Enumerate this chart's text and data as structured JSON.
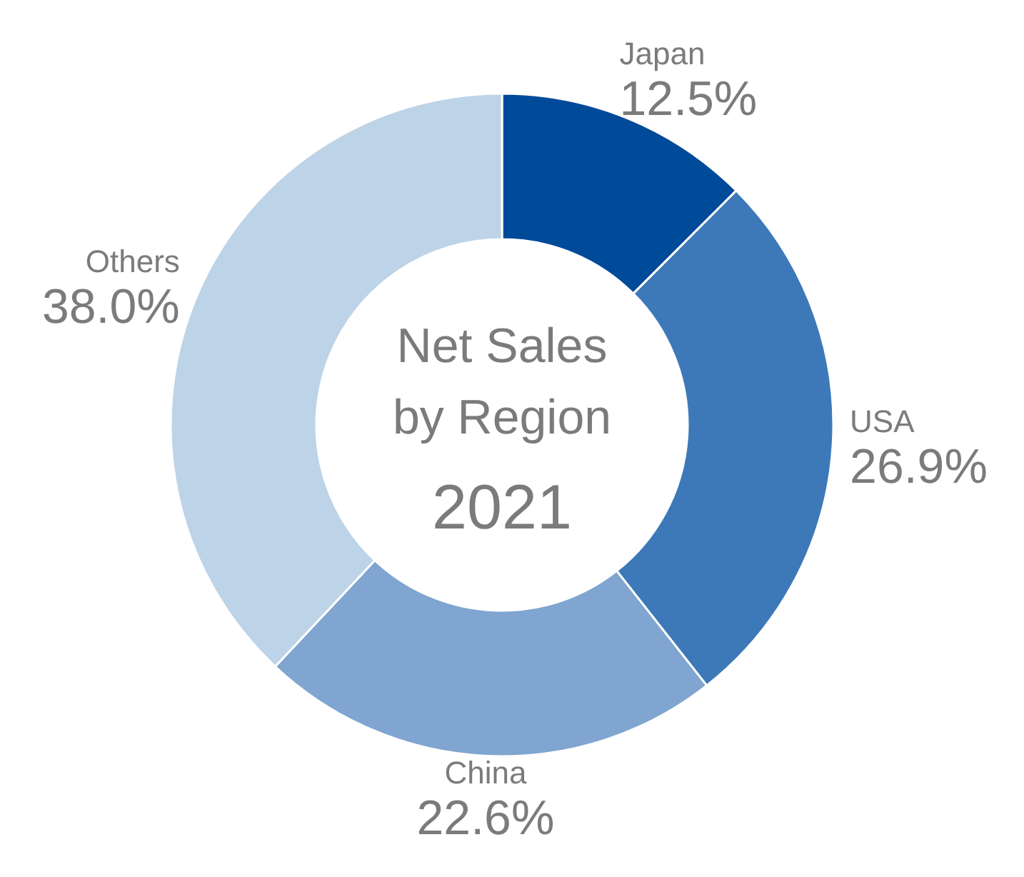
{
  "chart_data": {
    "type": "donut",
    "title": "Net Sales by Region",
    "subtitle": "2021",
    "categories": [
      "Japan",
      "USA",
      "China",
      "Others"
    ],
    "values": [
      12.5,
      26.9,
      22.6,
      38.0
    ],
    "colors": [
      "#004a9a",
      "#3d79b8",
      "#7fa5d0",
      "#bdd3e8"
    ],
    "value_labels": [
      "12.5%",
      "26.9%",
      "22.6%",
      "38.0%"
    ]
  }
}
